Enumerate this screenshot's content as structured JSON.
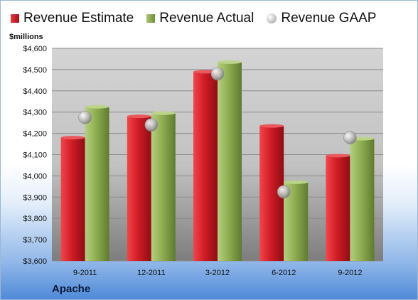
{
  "legend": {
    "estimate_label": "Revenue Estimate",
    "actual_label": "Revenue Actual",
    "gaap_label": "Revenue GAAP"
  },
  "unit_label": "$millions",
  "company_label": "Apache",
  "colors": {
    "estimate": "#c4161f",
    "actual": "#8aaa4f",
    "gaap": "#b0b0b0",
    "plot_background": "#c9c9c9"
  },
  "chart_data": {
    "type": "bar",
    "categories": [
      "9-2011",
      "12-2011",
      "3-2012",
      "6-2012",
      "9-2012"
    ],
    "series": [
      {
        "name": "Revenue Estimate",
        "kind": "bar",
        "values": [
          4180,
          4280,
          4490,
          4235,
          4095
        ]
      },
      {
        "name": "Revenue Actual",
        "kind": "bar",
        "values": [
          4325,
          4295,
          4535,
          3970,
          4175
        ]
      },
      {
        "name": "Revenue GAAP",
        "kind": "marker",
        "values": [
          4275,
          4240,
          4480,
          3925,
          4180
        ]
      }
    ],
    "ylim": [
      3600,
      4600
    ],
    "yticks": [
      "$3,600",
      "$3,700",
      "$3,800",
      "$3,900",
      "$4,000",
      "$4,100",
      "$4,200",
      "$4,300",
      "$4,400",
      "$4,500",
      "$4,600"
    ],
    "ytick_values": [
      3600,
      3700,
      3800,
      3900,
      4000,
      4100,
      4200,
      4300,
      4400,
      4500,
      4600
    ],
    "ylabel": "$millions",
    "grid": true,
    "legend_position": "top"
  }
}
